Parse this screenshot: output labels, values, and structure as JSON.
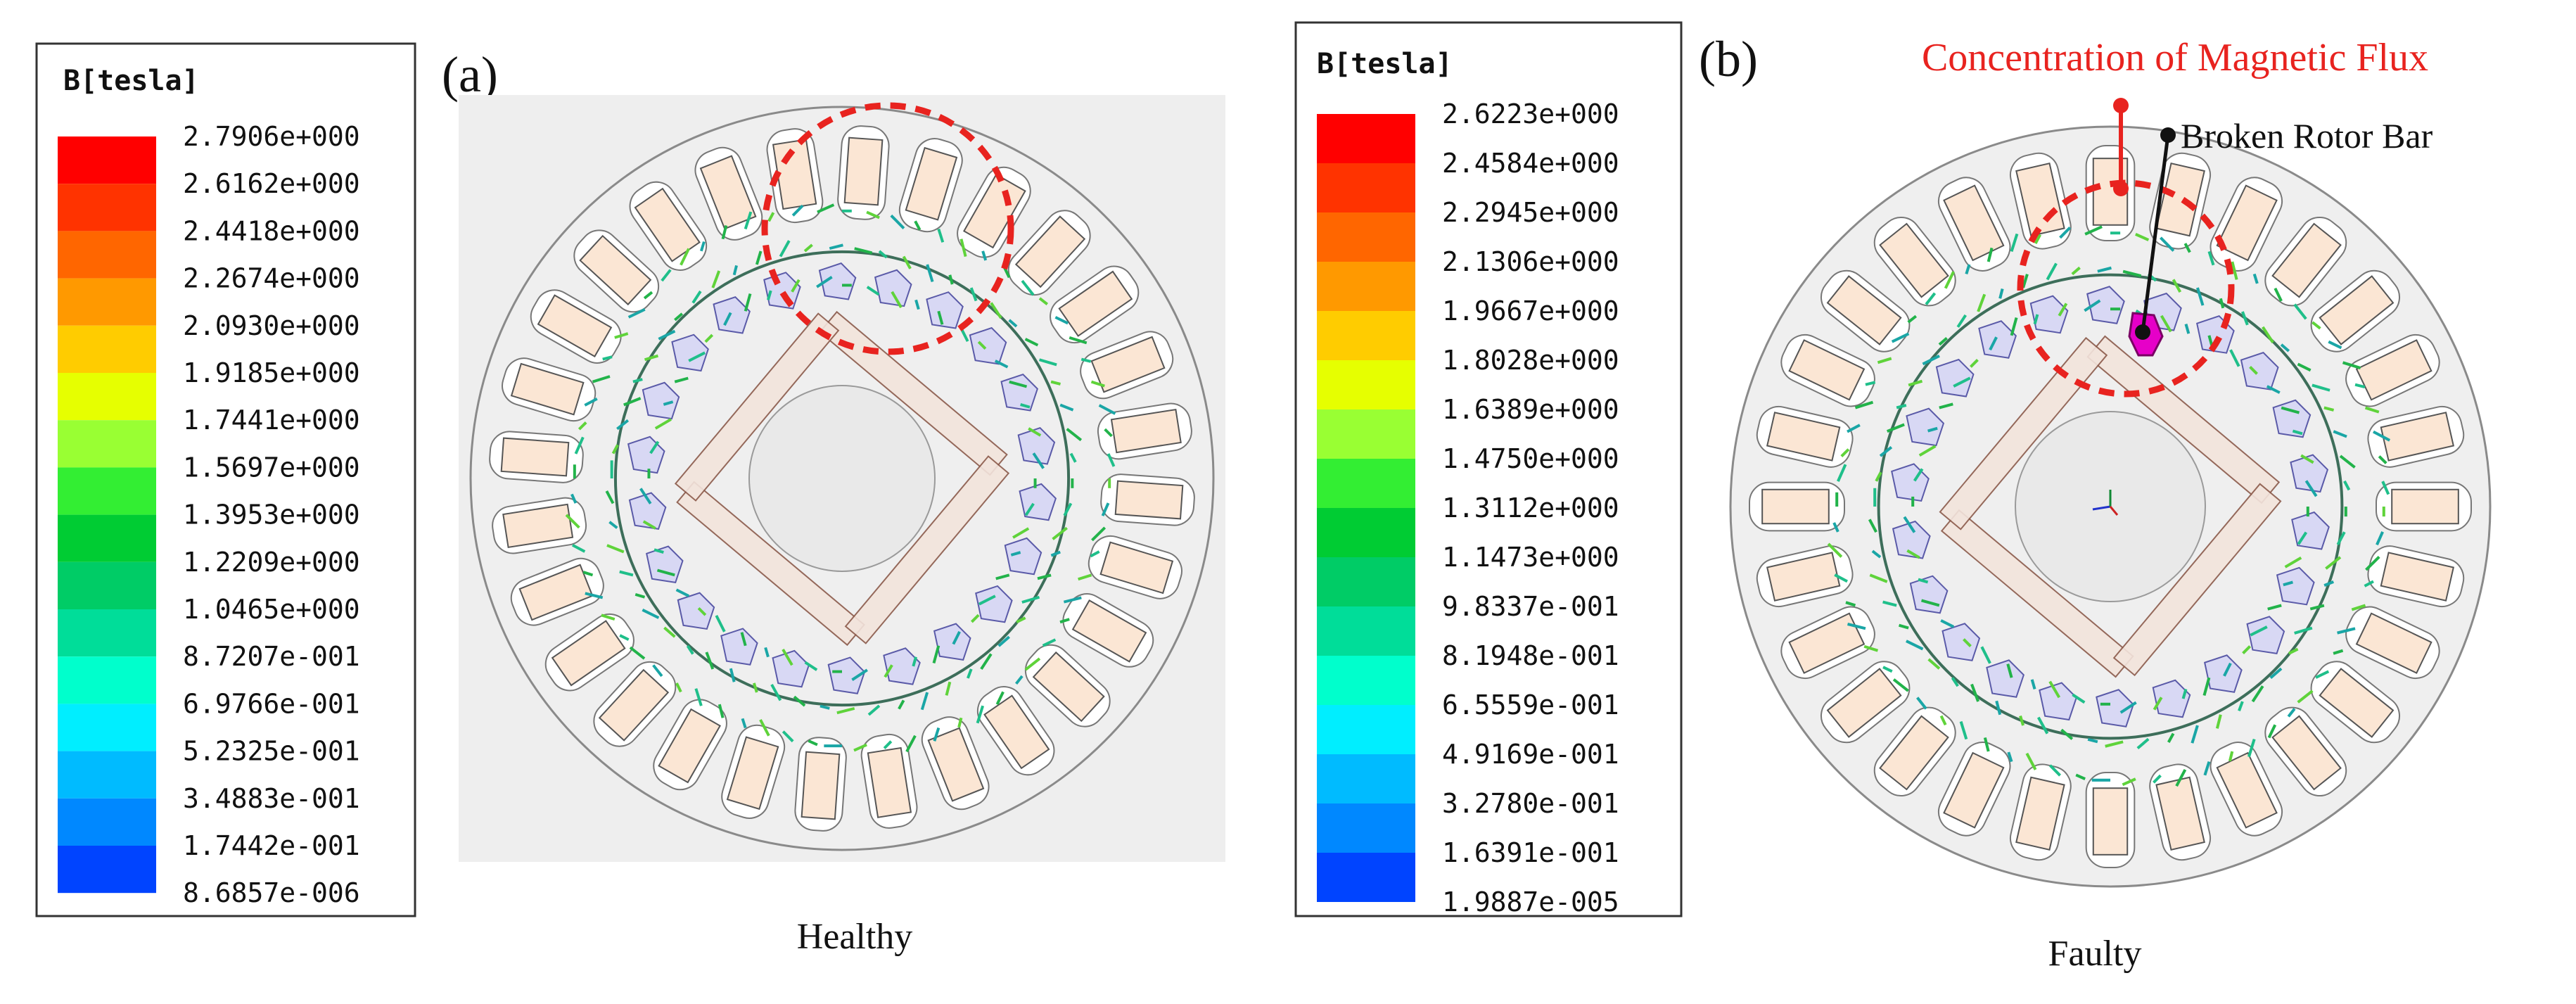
{
  "figure": {
    "panel_a": {
      "tag": "(a)",
      "caption": "Healthy",
      "legend": {
        "title": "B[tesla]",
        "values": [
          "2.7906e+000",
          "2.6162e+000",
          "2.4418e+000",
          "2.2674e+000",
          "2.0930e+000",
          "1.9185e+000",
          "1.7441e+000",
          "1.5697e+000",
          "1.3953e+000",
          "1.2209e+000",
          "1.0465e+000",
          "8.7207e-001",
          "6.9766e-001",
          "5.2325e-001",
          "3.4883e-001",
          "1.7442e-001",
          "8.6857e-006"
        ]
      }
    },
    "panel_b": {
      "tag": "(b)",
      "caption": "Faulty",
      "annotation_flux": "Concentration of Magnetic Flux",
      "annotation_bar": "Broken Rotor Bar",
      "legend": {
        "title": "B[tesla]",
        "values": [
          "2.6223e+000",
          "2.4584e+000",
          "2.2945e+000",
          "2.1306e+000",
          "1.9667e+000",
          "1.8028e+000",
          "1.6389e+000",
          "1.4750e+000",
          "1.3112e+000",
          "1.1473e+000",
          "9.8337e-001",
          "8.1948e-001",
          "6.5559e-001",
          "4.9169e-001",
          "3.2780e-001",
          "1.6391e-001",
          "1.9887e-005"
        ]
      }
    },
    "colors": {
      "scale": [
        "#ff0000",
        "#ff3300",
        "#ff6600",
        "#ff9900",
        "#ffcc00",
        "#e6ff00",
        "#99ff33",
        "#33ee33",
        "#00cc33",
        "#00cc66",
        "#00dd99",
        "#00ffcc",
        "#00eeff",
        "#00bbff",
        "#0088ff",
        "#0044ff",
        "#0000ff"
      ],
      "annotation_red": "#e8231f",
      "slot_fill": "#fbe6d4",
      "bar_fill": "#d8d8f4",
      "broken_bar": "#e600c8"
    }
  }
}
